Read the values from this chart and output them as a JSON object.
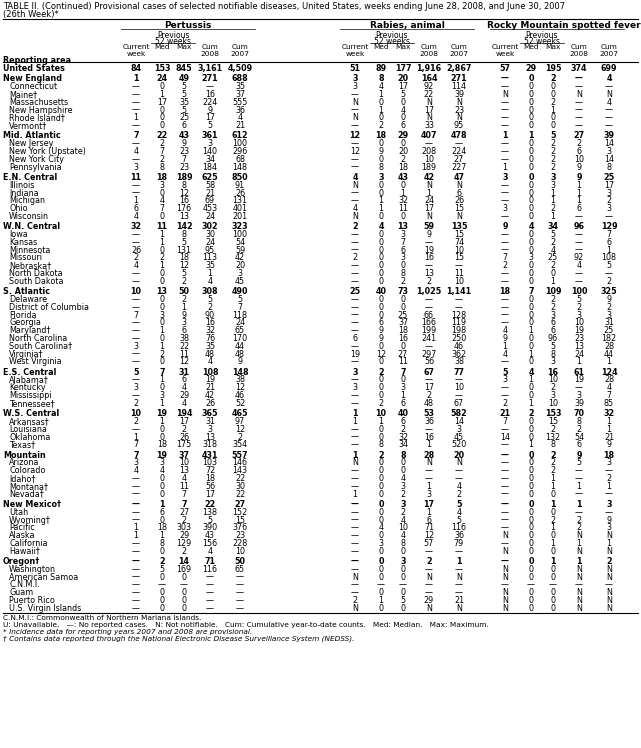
{
  "title_line1": "TABLE II. (Continued) Provisional cases of selected notifiable diseases, United States, weeks ending June 28, 2008, and June 30, 2007",
  "title_line2": "(26th Week)*",
  "rows": [
    [
      "United States",
      "84",
      "153",
      "845",
      "3,161",
      "4,509",
      "51",
      "89",
      "177",
      "1,916",
      "2,867",
      "57",
      "29",
      "195",
      "374",
      "699"
    ],
    [
      "New England",
      "1",
      "24",
      "49",
      "271",
      "688",
      "3",
      "8",
      "20",
      "164",
      "271",
      "—",
      "0",
      "2",
      "—",
      "4"
    ],
    [
      "Connecticut",
      "—",
      "0",
      "5",
      "—",
      "35",
      "3",
      "4",
      "17",
      "92",
      "114",
      "—",
      "0",
      "0",
      "—",
      "—"
    ],
    [
      "Maine†",
      "—",
      "1",
      "5",
      "16",
      "37",
      "—",
      "1",
      "5",
      "22",
      "39",
      "N",
      "0",
      "0",
      "N",
      "N"
    ],
    [
      "Massachusetts",
      "—",
      "17",
      "35",
      "224",
      "555",
      "N",
      "0",
      "0",
      "N",
      "N",
      "—",
      "0",
      "2",
      "—",
      "4"
    ],
    [
      "New Hampshire",
      "—",
      "0",
      "5",
      "9",
      "36",
      "—",
      "1",
      "4",
      "17",
      "23",
      "—",
      "0",
      "1",
      "—",
      "—"
    ],
    [
      "Rhode Island†",
      "1",
      "0",
      "25",
      "17",
      "4",
      "N",
      "0",
      "0",
      "N",
      "N",
      "—",
      "0",
      "0",
      "—",
      "—"
    ],
    [
      "Vermont†",
      "—",
      "0",
      "6",
      "5",
      "21",
      "—",
      "2",
      "6",
      "33",
      "95",
      "—",
      "0",
      "0",
      "—",
      "—"
    ],
    [
      "Mid. Atlantic",
      "7",
      "22",
      "43",
      "361",
      "612",
      "12",
      "18",
      "29",
      "407",
      "478",
      "1",
      "1",
      "5",
      "27",
      "39"
    ],
    [
      "New Jersey",
      "—",
      "2",
      "9",
      "3",
      "100",
      "—",
      "0",
      "0",
      "—",
      "—",
      "—",
      "0",
      "2",
      "2",
      "14"
    ],
    [
      "New York (Upstate)",
      "4",
      "7",
      "23",
      "140",
      "296",
      "12",
      "9",
      "20",
      "208",
      "224",
      "—",
      "0",
      "2",
      "6",
      "3"
    ],
    [
      "New York City",
      "—",
      "2",
      "7",
      "34",
      "68",
      "—",
      "0",
      "2",
      "10",
      "27",
      "—",
      "0",
      "2",
      "10",
      "14"
    ],
    [
      "Pennsylvania",
      "3",
      "8",
      "23",
      "184",
      "148",
      "—",
      "8",
      "18",
      "189",
      "227",
      "1",
      "0",
      "2",
      "9",
      "8"
    ],
    [
      "E.N. Central",
      "11",
      "18",
      "189",
      "625",
      "850",
      "4",
      "3",
      "43",
      "42",
      "47",
      "3",
      "0",
      "3",
      "9",
      "25"
    ],
    [
      "Illinois",
      "—",
      "3",
      "8",
      "58",
      "91",
      "N",
      "0",
      "0",
      "N",
      "N",
      "—",
      "0",
      "3",
      "1",
      "17"
    ],
    [
      "Indiana",
      "—",
      "0",
      "12",
      "21",
      "26",
      "—",
      "0",
      "1",
      "1",
      "6",
      "—",
      "0",
      "1",
      "1",
      "3"
    ],
    [
      "Michigan",
      "1",
      "4",
      "16",
      "69",
      "131",
      "—",
      "1",
      "32",
      "24",
      "26",
      "—",
      "0",
      "1",
      "1",
      "2"
    ],
    [
      "Ohio",
      "6",
      "7",
      "176",
      "453",
      "401",
      "4",
      "1",
      "11",
      "17",
      "15",
      "3",
      "0",
      "2",
      "6",
      "3"
    ],
    [
      "Wisconsin",
      "4",
      "0",
      "13",
      "24",
      "201",
      "N",
      "0",
      "0",
      "N",
      "N",
      "—",
      "0",
      "1",
      "—",
      "—"
    ],
    [
      "W.N. Central",
      "32",
      "11",
      "142",
      "302",
      "323",
      "2",
      "4",
      "13",
      "59",
      "135",
      "9",
      "4",
      "34",
      "96",
      "129"
    ],
    [
      "Iowa",
      "—",
      "1",
      "8",
      "30",
      "100",
      "—",
      "0",
      "3",
      "9",
      "15",
      "—",
      "0",
      "5",
      "—",
      "7"
    ],
    [
      "Kansas",
      "—",
      "1",
      "5",
      "24",
      "54",
      "—",
      "0",
      "7",
      "—",
      "74",
      "—",
      "0",
      "2",
      "—",
      "6"
    ],
    [
      "Minnesota",
      "26",
      "0",
      "131",
      "95",
      "59",
      "—",
      "0",
      "6",
      "19",
      "10",
      "—",
      "0",
      "4",
      "—",
      "1"
    ],
    [
      "Missouri",
      "2",
      "2",
      "18",
      "113",
      "42",
      "2",
      "0",
      "3",
      "16",
      "15",
      "7",
      "3",
      "25",
      "92",
      "108"
    ],
    [
      "Nebraska†",
      "4",
      "1",
      "12",
      "35",
      "20",
      "—",
      "0",
      "0",
      "—",
      "—",
      "2",
      "0",
      "2",
      "4",
      "5"
    ],
    [
      "North Dakota",
      "—",
      "0",
      "5",
      "1",
      "3",
      "—",
      "0",
      "8",
      "13",
      "11",
      "—",
      "0",
      "0",
      "—",
      "—"
    ],
    [
      "South Dakota",
      "—",
      "0",
      "2",
      "4",
      "45",
      "—",
      "0",
      "2",
      "2",
      "10",
      "—",
      "0",
      "1",
      "—",
      "2"
    ],
    [
      "S. Atlantic",
      "10",
      "13",
      "50",
      "308",
      "490",
      "25",
      "40",
      "73",
      "1,025",
      "1,141",
      "18",
      "7",
      "109",
      "100",
      "325"
    ],
    [
      "Delaware",
      "—",
      "0",
      "2",
      "5",
      "5",
      "—",
      "0",
      "0",
      "—",
      "—",
      "—",
      "0",
      "2",
      "5",
      "9"
    ],
    [
      "District of Columbia",
      "—",
      "0",
      "1",
      "2",
      "7",
      "—",
      "0",
      "0",
      "—",
      "—",
      "—",
      "0",
      "2",
      "2",
      "2"
    ],
    [
      "Florida",
      "7",
      "3",
      "9",
      "90",
      "118",
      "—",
      "0",
      "25",
      "66",
      "128",
      "—",
      "0",
      "3",
      "3",
      "3"
    ],
    [
      "Georgia",
      "—",
      "0",
      "3",
      "16",
      "24",
      "—",
      "6",
      "37",
      "166",
      "119",
      "—",
      "0",
      "6",
      "10",
      "31"
    ],
    [
      "Maryland†",
      "—",
      "1",
      "6",
      "32",
      "65",
      "—",
      "9",
      "18",
      "199",
      "198",
      "4",
      "1",
      "6",
      "19",
      "25"
    ],
    [
      "North Carolina",
      "—",
      "0",
      "38",
      "76",
      "170",
      "6",
      "9",
      "16",
      "241",
      "250",
      "9",
      "0",
      "96",
      "23",
      "182"
    ],
    [
      "South Carolina†",
      "3",
      "1",
      "22",
      "35",
      "44",
      "—",
      "0",
      "0",
      "—",
      "46",
      "1",
      "0",
      "5",
      "13",
      "28"
    ],
    [
      "Virginia†",
      "—",
      "2",
      "11",
      "48",
      "48",
      "19",
      "12",
      "27",
      "297",
      "362",
      "4",
      "1",
      "8",
      "24",
      "44"
    ],
    [
      "West Virginia",
      "—",
      "0",
      "12",
      "4",
      "9",
      "—",
      "0",
      "11",
      "56",
      "38",
      "—",
      "0",
      "3",
      "1",
      "1"
    ],
    [
      "E.S. Central",
      "5",
      "7",
      "31",
      "108",
      "148",
      "3",
      "2",
      "7",
      "67",
      "77",
      "5",
      "4",
      "16",
      "61",
      "124"
    ],
    [
      "Alabama†",
      "—",
      "1",
      "6",
      "19",
      "38",
      "—",
      "0",
      "0",
      "—",
      "—",
      "3",
      "1",
      "10",
      "19",
      "28"
    ],
    [
      "Kentucky",
      "3",
      "0",
      "4",
      "21",
      "12",
      "3",
      "0",
      "3",
      "17",
      "10",
      "—",
      "0",
      "2",
      "—",
      "4"
    ],
    [
      "Mississippi",
      "—",
      "3",
      "29",
      "42",
      "46",
      "—",
      "0",
      "1",
      "2",
      "—",
      "—",
      "0",
      "3",
      "3",
      "7"
    ],
    [
      "Tennessee†",
      "2",
      "1",
      "4",
      "26",
      "52",
      "—",
      "2",
      "6",
      "48",
      "67",
      "2",
      "1",
      "10",
      "39",
      "85"
    ],
    [
      "W.S. Central",
      "10",
      "19",
      "194",
      "365",
      "465",
      "1",
      "10",
      "40",
      "53",
      "582",
      "21",
      "2",
      "153",
      "70",
      "32"
    ],
    [
      "Arkansas†",
      "2",
      "1",
      "17",
      "31",
      "97",
      "1",
      "1",
      "6",
      "36",
      "14",
      "7",
      "0",
      "15",
      "8",
      "1"
    ],
    [
      "Louisiana",
      "—",
      "0",
      "2",
      "3",
      "12",
      "—",
      "0",
      "2",
      "—",
      "3",
      "—",
      "0",
      "2",
      "2",
      "1"
    ],
    [
      "Oklahoma",
      "1",
      "0",
      "26",
      "13",
      "2",
      "—",
      "0",
      "32",
      "16",
      "45",
      "14",
      "0",
      "132",
      "54",
      "21"
    ],
    [
      "Texas†",
      "7",
      "18",
      "175",
      "318",
      "354",
      "—",
      "8",
      "34",
      "1",
      "520",
      "—",
      "1",
      "8",
      "6",
      "9"
    ],
    [
      "Mountain",
      "7",
      "19",
      "37",
      "431",
      "557",
      "1",
      "2",
      "8",
      "28",
      "20",
      "—",
      "0",
      "2",
      "9",
      "18"
    ],
    [
      "Arizona",
      "3",
      "3",
      "10",
      "103",
      "146",
      "N",
      "0",
      "0",
      "N",
      "N",
      "—",
      "0",
      "2",
      "5",
      "3"
    ],
    [
      "Colorado",
      "4",
      "4",
      "13",
      "72",
      "143",
      "—",
      "0",
      "0",
      "—",
      "—",
      "—",
      "0",
      "2",
      "—",
      "—"
    ],
    [
      "Idaho†",
      "—",
      "0",
      "4",
      "18",
      "22",
      "—",
      "0",
      "4",
      "—",
      "—",
      "—",
      "0",
      "1",
      "—",
      "2"
    ],
    [
      "Montana†",
      "—",
      "0",
      "11",
      "56",
      "30",
      "—",
      "0",
      "3",
      "1",
      "4",
      "—",
      "0",
      "1",
      "1",
      "1"
    ],
    [
      "Nevada†",
      "—",
      "0",
      "7",
      "17",
      "22",
      "1",
      "0",
      "2",
      "3",
      "2",
      "—",
      "0",
      "0",
      "—",
      "—"
    ],
    [
      "New Mexico†",
      "—",
      "1",
      "7",
      "22",
      "27",
      "—",
      "0",
      "3",
      "17",
      "5",
      "—",
      "0",
      "1",
      "1",
      "3"
    ],
    [
      "Utah",
      "—",
      "6",
      "27",
      "138",
      "152",
      "—",
      "0",
      "2",
      "1",
      "4",
      "—",
      "0",
      "0",
      "—",
      "—"
    ],
    [
      "Wyoming†",
      "—",
      "0",
      "2",
      "5",
      "15",
      "—",
      "0",
      "4",
      "6",
      "5",
      "—",
      "0",
      "2",
      "2",
      "9"
    ],
    [
      "Pacific",
      "1",
      "18",
      "303",
      "390",
      "376",
      "—",
      "4",
      "10",
      "71",
      "116",
      "—",
      "0",
      "1",
      "2",
      "3"
    ],
    [
      "Alaska",
      "1",
      "1",
      "29",
      "43",
      "23",
      "—",
      "0",
      "4",
      "12",
      "36",
      "N",
      "0",
      "0",
      "N",
      "N"
    ],
    [
      "California",
      "—",
      "8",
      "129",
      "156",
      "228",
      "—",
      "3",
      "8",
      "57",
      "79",
      "—",
      "0",
      "1",
      "1",
      "1"
    ],
    [
      "Hawaii†",
      "—",
      "0",
      "2",
      "4",
      "10",
      "—",
      "0",
      "0",
      "—",
      "—",
      "N",
      "0",
      "0",
      "N",
      "N"
    ],
    [
      "Oregon†",
      "—",
      "2",
      "14",
      "71",
      "50",
      "—",
      "0",
      "3",
      "2",
      "1",
      "—",
      "0",
      "1",
      "1",
      "2"
    ],
    [
      "Washington",
      "—",
      "5",
      "169",
      "116",
      "65",
      "—",
      "0",
      "0",
      "—",
      "—",
      "N",
      "0",
      "0",
      "N",
      "N"
    ],
    [
      "American Samoa",
      "—",
      "0",
      "0",
      "—",
      "—",
      "N",
      "0",
      "0",
      "N",
      "N",
      "N",
      "0",
      "0",
      "N",
      "N"
    ],
    [
      "C.N.M.I.",
      "—",
      "—",
      "—",
      "—",
      "—",
      "—",
      "—",
      "—",
      "—",
      "—",
      "—",
      "—",
      "—",
      "—",
      "—"
    ],
    [
      "Guam",
      "—",
      "0",
      "0",
      "—",
      "—",
      "—",
      "0",
      "0",
      "—",
      "—",
      "N",
      "0",
      "0",
      "N",
      "N"
    ],
    [
      "Puerto Rico",
      "—",
      "0",
      "0",
      "—",
      "—",
      "2",
      "1",
      "5",
      "29",
      "21",
      "N",
      "0",
      "0",
      "N",
      "N"
    ],
    [
      "U.S. Virgin Islands",
      "—",
      "0",
      "0",
      "—",
      "—",
      "N",
      "0",
      "0",
      "N",
      "N",
      "N",
      "0",
      "0",
      "N",
      "N"
    ]
  ],
  "bold_rows": [
    0,
    1,
    8,
    13,
    19,
    27,
    37,
    42,
    47,
    53,
    60
  ],
  "section_gap_before": [
    1,
    8,
    13,
    19,
    27,
    37,
    42,
    47,
    53,
    60
  ],
  "footer_lines": [
    "C.N.M.I.: Commonwealth of Northern Mariana Islands.",
    "U: Unavailable.   —: No reported cases.   N: Not notifiable.   Cum: Cumulative year-to-date counts.   Med: Median.   Max: Maximum.",
    "* Incidence data for reporting years 2007 and 2008 are provisional.",
    "† Contains data reported through the National Electronic Disease Surveillance System (NEDSS)."
  ]
}
